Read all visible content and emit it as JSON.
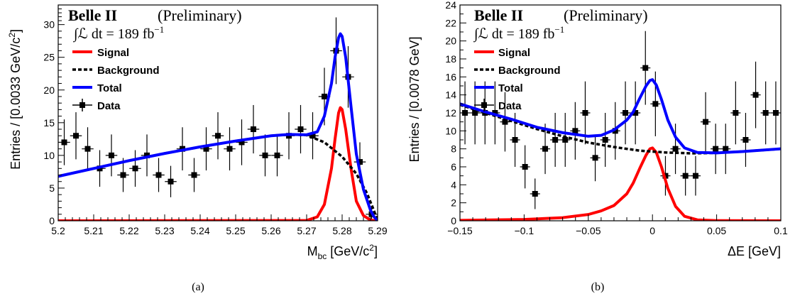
{
  "experiment": "Belle II",
  "status": "(Preliminary)",
  "luminosity_text": "∫ℒ dt = 189 fb",
  "luminosity_exp": "−1",
  "legend": {
    "signal": "Signal",
    "background": "Background",
    "total": "Total",
    "data": "Data"
  },
  "colors": {
    "signal": "#ff0000",
    "background": "#000000",
    "total": "#0000ff",
    "data": "#000000"
  },
  "chart_data": [
    {
      "type": "line",
      "panel": "(a)",
      "xlabel_main": "M",
      "xlabel_sub": "bc",
      "xlabel_rest": " [GeV/c",
      "xlabel_sup": "2",
      "xlabel_end": "]",
      "ylabel_main": "Entries / [0.0033 GeV/c",
      "ylabel_sup": "2",
      "ylabel_end": "]",
      "xlim": [
        5.2,
        5.29
      ],
      "ylim": [
        0,
        33
      ],
      "xticks": [
        5.2,
        5.21,
        5.22,
        5.23,
        5.24,
        5.25,
        5.26,
        5.27,
        5.28,
        5.29
      ],
      "xtick_labels": [
        "5.2",
        "5.21",
        "5.22",
        "5.23",
        "5.24",
        "5.25",
        "5.26",
        "5.27",
        "5.28",
        "5.29"
      ],
      "yticks": [
        0,
        5,
        10,
        15,
        20,
        25,
        30
      ],
      "ytick_labels": [
        "0",
        "5",
        "10",
        "15",
        "20",
        "25",
        "30"
      ],
      "data": {
        "x": [
          5.2017,
          5.205,
          5.2083,
          5.2117,
          5.215,
          5.2183,
          5.2217,
          5.225,
          5.2283,
          5.2317,
          5.235,
          5.2383,
          5.2417,
          5.245,
          5.2483,
          5.2517,
          5.255,
          5.2583,
          5.2617,
          5.265,
          5.2683,
          5.2717,
          5.275,
          5.2783,
          5.2817,
          5.285,
          5.2883
        ],
        "y": [
          12,
          13,
          11,
          8,
          10,
          7,
          8,
          10,
          7,
          6,
          11,
          7,
          11,
          13,
          11,
          12,
          14,
          10,
          10,
          13,
          14,
          13,
          19,
          26,
          22,
          9,
          1
        ],
        "yerr": [
          3.5,
          3.6,
          3.3,
          2.8,
          3.2,
          2.6,
          2.8,
          3.2,
          2.6,
          2.4,
          3.3,
          2.6,
          3.3,
          3.6,
          3.3,
          3.5,
          3.7,
          3.2,
          3.2,
          3.6,
          3.7,
          3.6,
          4.4,
          5.1,
          4.7,
          3.0,
          1.2
        ]
      },
      "background": {
        "x": [
          5.2,
          5.21,
          5.22,
          5.23,
          5.24,
          5.25,
          5.26,
          5.265,
          5.27,
          5.275,
          5.28,
          5.284,
          5.287,
          5.289,
          5.29
        ],
        "y": [
          6.8,
          8.0,
          9.2,
          10.3,
          11.3,
          12.2,
          13.0,
          13.2,
          13.1,
          12.0,
          9.8,
          7.2,
          4.2,
          1.5,
          0
        ]
      },
      "signal": {
        "x": [
          5.2,
          5.27,
          5.273,
          5.275,
          5.277,
          5.278,
          5.279,
          5.2795,
          5.28,
          5.281,
          5.2825,
          5.284,
          5.286,
          5.288,
          5.29
        ],
        "y": [
          0,
          0.05,
          0.6,
          2.5,
          8.0,
          12.5,
          16.5,
          17.3,
          17.0,
          14.0,
          8.0,
          3.0,
          0.8,
          0.1,
          0
        ]
      },
      "total": {
        "x": [
          5.2,
          5.21,
          5.22,
          5.23,
          5.24,
          5.25,
          5.26,
          5.265,
          5.27,
          5.273,
          5.275,
          5.277,
          5.278,
          5.279,
          5.2795,
          5.28,
          5.281,
          5.2825,
          5.284,
          5.286,
          5.288,
          5.289,
          5.29
        ],
        "y": [
          6.8,
          8.0,
          9.2,
          10.3,
          11.3,
          12.2,
          13.0,
          13.2,
          13.15,
          13.6,
          16.0,
          21.0,
          25.0,
          28.0,
          28.6,
          28.2,
          25.0,
          17.5,
          10.2,
          4.8,
          1.6,
          0.6,
          0
        ]
      }
    },
    {
      "type": "line",
      "panel": "(b)",
      "xlabel_main": "ΔE [GeV]",
      "ylabel_main": "Entries / [0.0078 GeV]",
      "xlim": [
        -0.15,
        0.1
      ],
      "ylim": [
        0,
        24
      ],
      "xticks": [
        -0.15,
        -0.1,
        -0.05,
        0,
        0.05,
        0.1
      ],
      "xtick_labels": [
        "−0.15",
        "−0.1",
        "−0.05",
        "0",
        "0.05",
        "0.1"
      ],
      "yticks": [
        0,
        2,
        4,
        6,
        8,
        10,
        12,
        14,
        16,
        18,
        20,
        22,
        24
      ],
      "ytick_labels": [
        "0",
        "2",
        "4",
        "6",
        "8",
        "10",
        "12",
        "14",
        "16",
        "18",
        "20",
        "22",
        "24"
      ],
      "data": {
        "x": [
          -0.1461,
          -0.1383,
          -0.1305,
          -0.1227,
          -0.1149,
          -0.1071,
          -0.0993,
          -0.0915,
          -0.0836,
          -0.0758,
          -0.068,
          -0.0602,
          -0.0524,
          -0.0446,
          -0.0368,
          -0.029,
          -0.0211,
          -0.0133,
          -0.0055,
          0.0023,
          0.0101,
          0.0179,
          0.0257,
          0.0336,
          0.0414,
          0.0492,
          0.057,
          0.0648,
          0.0726,
          0.0804,
          0.0882,
          0.0961
        ],
        "y": [
          12,
          12,
          12,
          12,
          11,
          9,
          6,
          3,
          8,
          9,
          9,
          10,
          12,
          7,
          9,
          10,
          12,
          12,
          17,
          13,
          5,
          8,
          5,
          5,
          11,
          8,
          8,
          12,
          9,
          14,
          12,
          12
        ],
        "yerr": [
          3.5,
          3.5,
          3.5,
          3.5,
          3.3,
          3.0,
          2.4,
          1.7,
          2.8,
          3.0,
          3.0,
          3.2,
          3.5,
          2.6,
          3.0,
          3.2,
          3.5,
          3.5,
          4.1,
          3.6,
          2.2,
          2.8,
          2.2,
          2.2,
          3.3,
          2.8,
          2.8,
          3.5,
          3.0,
          3.7,
          3.5,
          3.5
        ]
      },
      "background": {
        "x": [
          -0.15,
          -0.13,
          -0.11,
          -0.09,
          -0.07,
          -0.05,
          -0.03,
          -0.01,
          0.01,
          0.03,
          0.05,
          0.07,
          0.1
        ],
        "y": [
          12.9,
          12.0,
          11.1,
          10.2,
          9.4,
          8.7,
          8.2,
          7.8,
          7.6,
          7.5,
          7.55,
          7.7,
          8.0
        ]
      },
      "signal": {
        "x": [
          -0.15,
          -0.1,
          -0.07,
          -0.05,
          -0.04,
          -0.03,
          -0.02,
          -0.015,
          -0.01,
          -0.005,
          -0.002,
          0.0,
          0.003,
          0.007,
          0.012,
          0.018,
          0.025,
          0.035,
          0.05,
          0.1
        ],
        "y": [
          0.05,
          0.15,
          0.35,
          0.7,
          1.1,
          1.7,
          3.0,
          4.2,
          5.8,
          7.3,
          8.0,
          8.1,
          7.6,
          6.0,
          3.6,
          1.6,
          0.5,
          0.1,
          0.02,
          0
        ]
      },
      "total": {
        "x": [
          -0.15,
          -0.13,
          -0.11,
          -0.09,
          -0.07,
          -0.05,
          -0.04,
          -0.03,
          -0.02,
          -0.015,
          -0.01,
          -0.005,
          -0.002,
          0.0,
          0.003,
          0.007,
          0.012,
          0.018,
          0.025,
          0.035,
          0.05,
          0.07,
          0.1
        ],
        "y": [
          13.0,
          12.1,
          11.3,
          10.4,
          9.8,
          9.4,
          9.5,
          10.1,
          11.2,
          12.1,
          13.6,
          15.0,
          15.6,
          15.7,
          15.1,
          13.5,
          11.2,
          9.3,
          8.1,
          7.6,
          7.55,
          7.7,
          8.0
        ]
      }
    }
  ],
  "captions": [
    "(a)",
    "(b)"
  ]
}
